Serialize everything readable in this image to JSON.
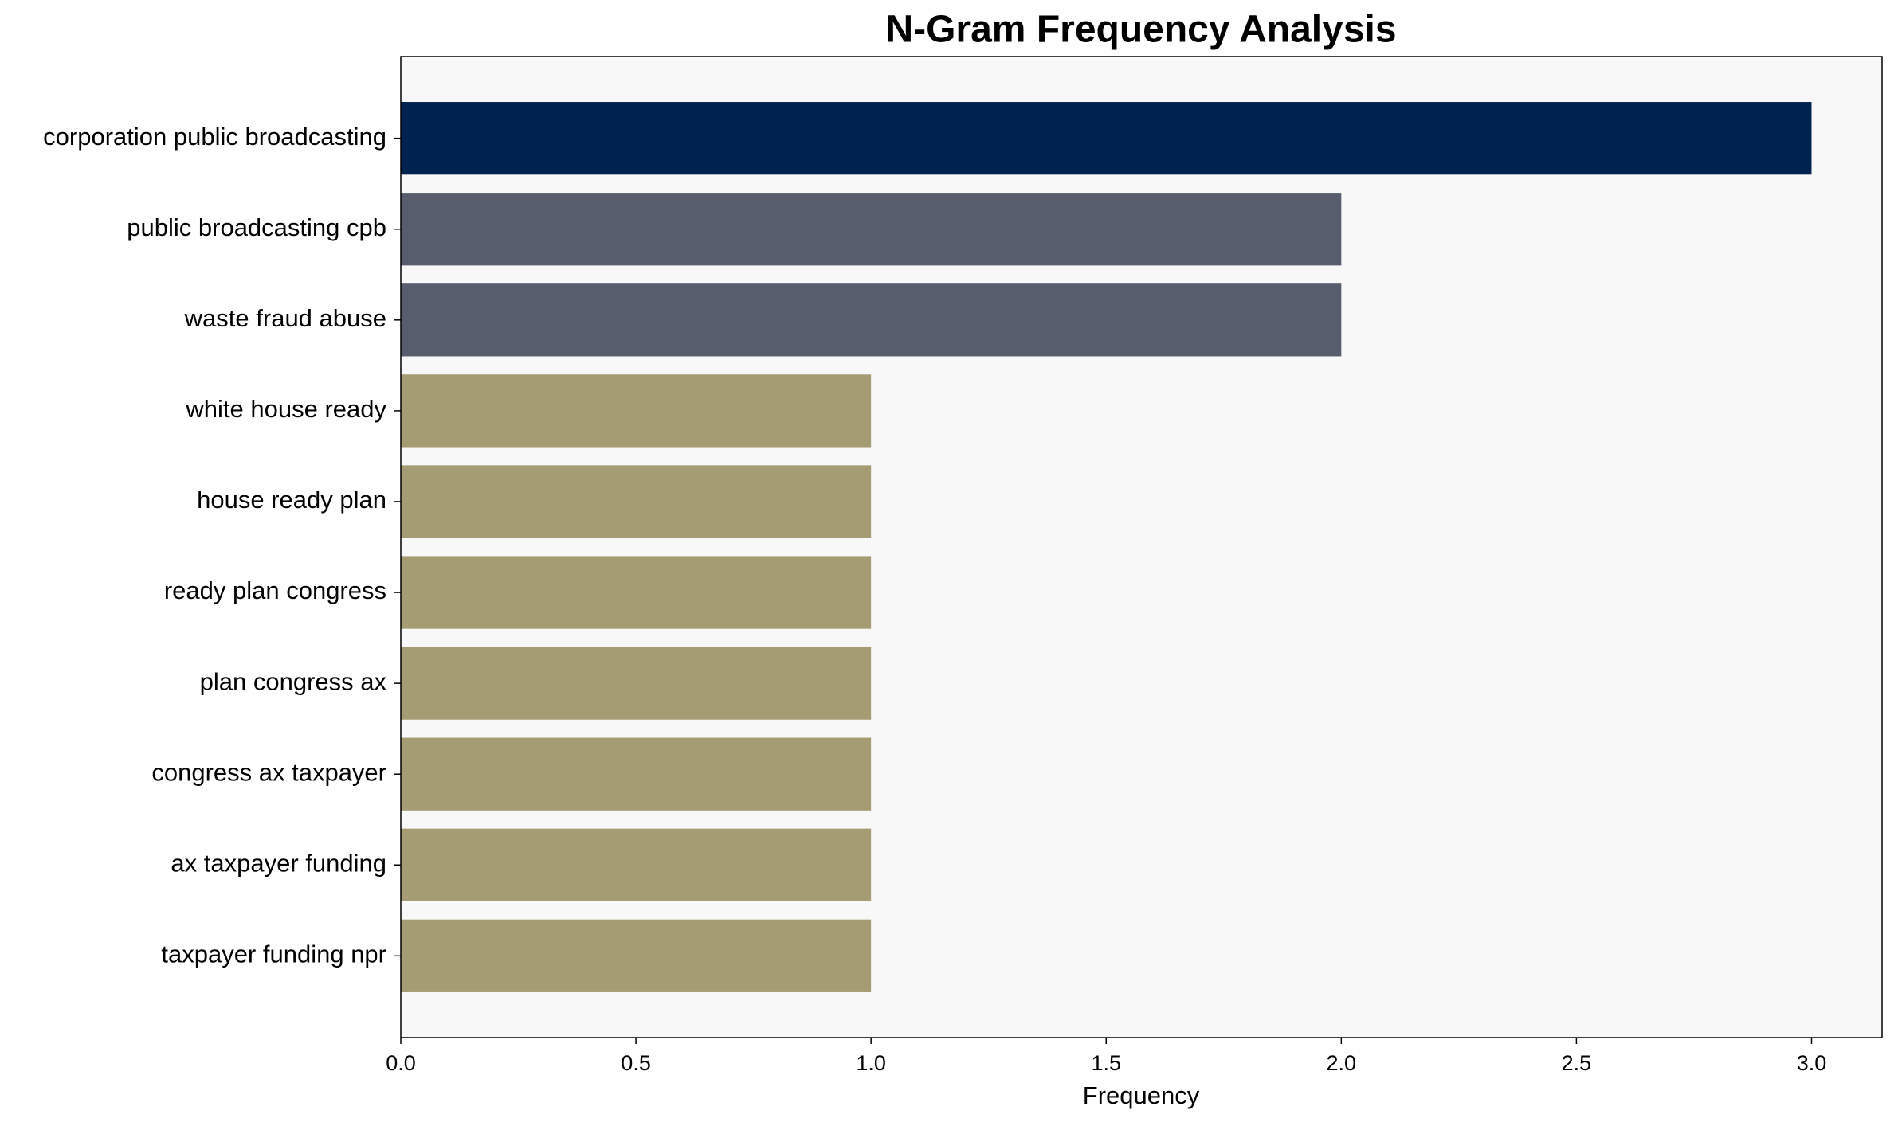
{
  "chart_data": {
    "type": "barh",
    "title": "N-Gram Frequency Analysis",
    "xlabel": "Frequency",
    "categories": [
      "corporation public broadcasting",
      "public broadcasting cpb",
      "waste fraud abuse",
      "white house ready",
      "house ready plan",
      "ready plan congress",
      "plan congress ax",
      "congress ax taxpayer",
      "ax taxpayer funding",
      "taxpayer funding npr"
    ],
    "values": [
      3,
      2,
      2,
      1,
      1,
      1,
      1,
      1,
      1,
      1
    ],
    "colors": [
      "#00224e",
      "#575d6d",
      "#575d6d",
      "#a59c74",
      "#a59c74",
      "#a59c74",
      "#a59c74",
      "#a59c74",
      "#a59c74",
      "#a59c74"
    ],
    "xlim": [
      0,
      3.15
    ],
    "xticks": [
      {
        "value": 0,
        "label": "0.0"
      },
      0.5,
      {
        "value": 1,
        "label": "1.0"
      },
      1.5,
      {
        "value": 2,
        "label": "2.0"
      },
      2.5,
      {
        "value": 3,
        "label": "3.0"
      }
    ],
    "background": "#f8f8f8"
  }
}
